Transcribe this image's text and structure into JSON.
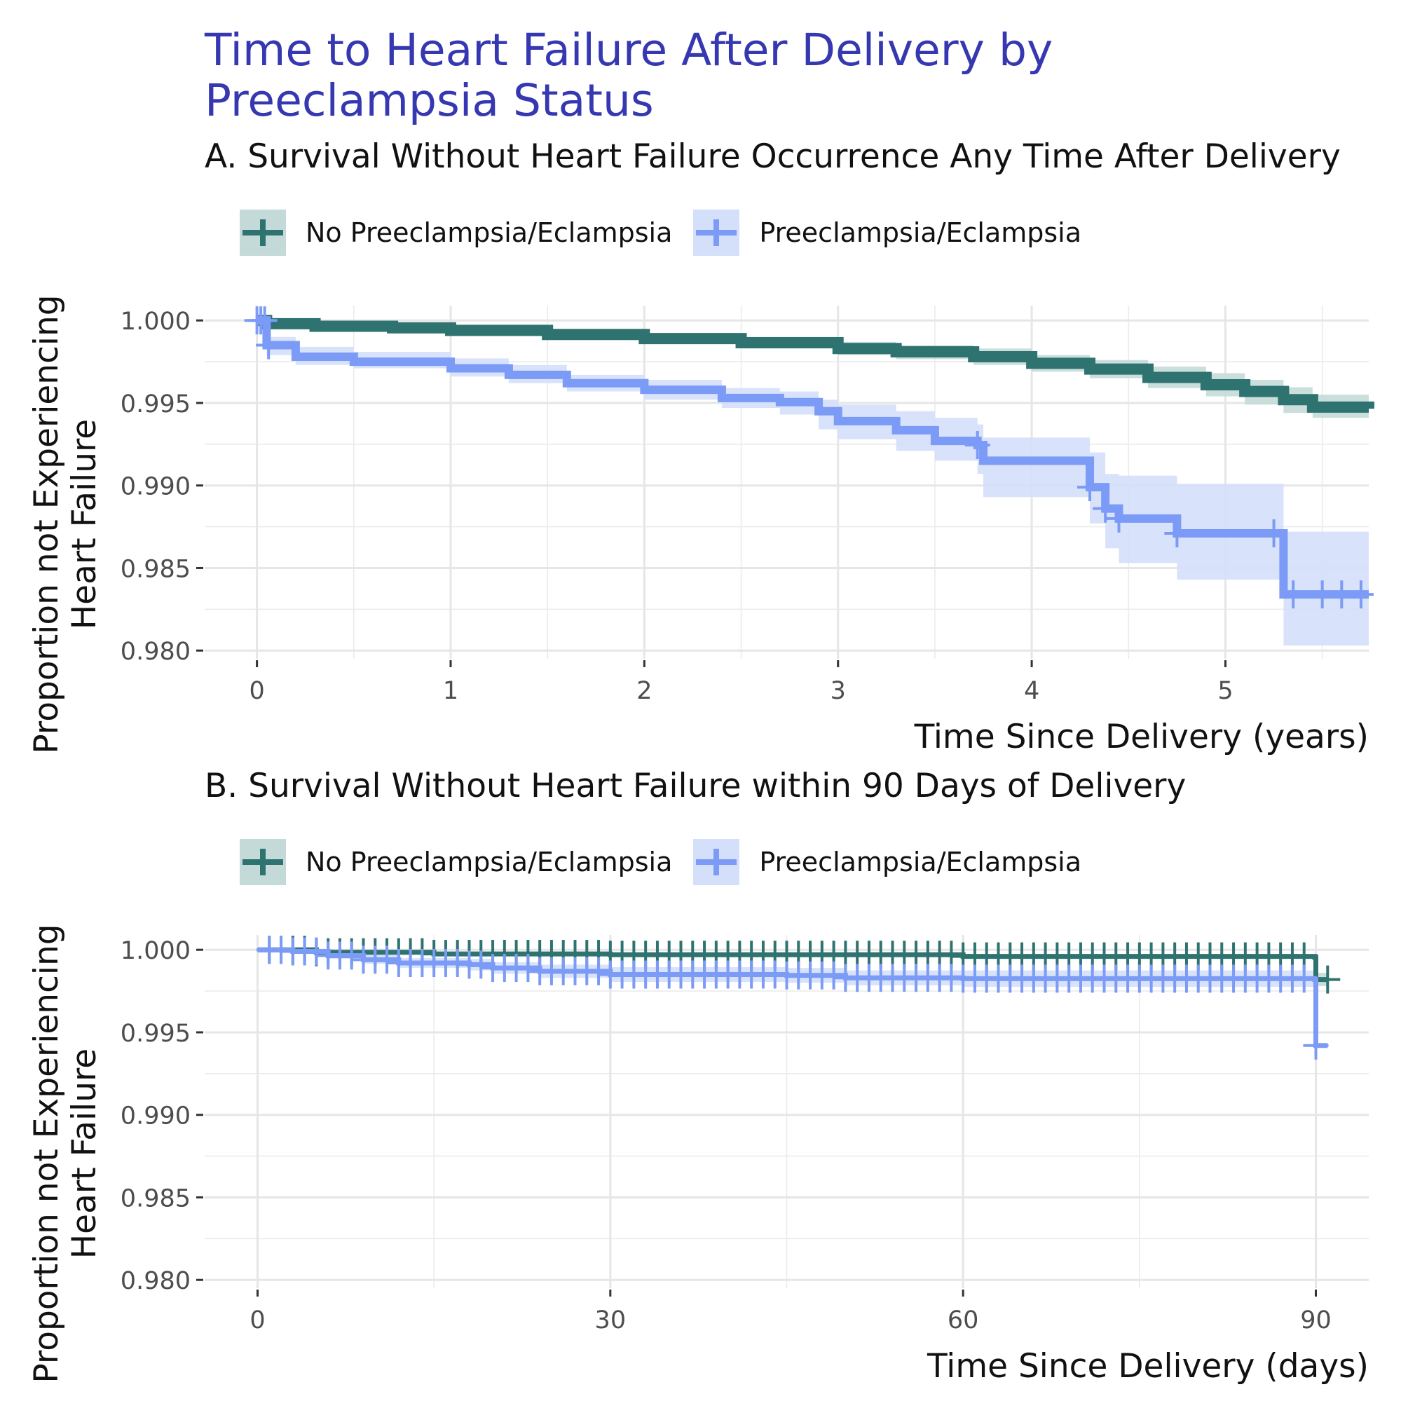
{
  "title": "Time to Heart Failure After Delivery by\nPreeclampsia Status",
  "colors": {
    "title": "#3538b0",
    "no_preeclampsia": "#2e7370",
    "no_preeclampsia_band": "#c4dad8",
    "preeclampsia": "#7b9bf6",
    "preeclampsia_band": "#d4dffa"
  },
  "chart_data": [
    {
      "type": "line",
      "subtype": "kaplan-meier survival with confidence bands and censor marks",
      "title": "A. Survival Without Heart Failure Occurrence Any Time After Delivery",
      "xlabel": "Time Since Delivery (years)",
      "ylabel": "Proportion not Experiencing\nHeart Failure",
      "xlim": [
        -0.27,
        5.74
      ],
      "ylim": [
        0.9795,
        1.0009
      ],
      "x_ticks": [
        0,
        1,
        2,
        3,
        4,
        5
      ],
      "y_ticks": [
        0.98,
        0.985,
        0.99,
        0.995,
        1.0
      ],
      "y_tick_labels": [
        "0.980",
        "0.985",
        "0.990",
        "0.995",
        "1.000"
      ],
      "legend_position": "top-left",
      "grid": true,
      "series": [
        {
          "name": "No Preeclampsia/Eclampsia",
          "color_key": "no_preeclampsia",
          "x": [
            0,
            0.05,
            0.3,
            0.7,
            1.0,
            1.5,
            2.0,
            2.5,
            3.0,
            3.3,
            3.7,
            4.0,
            4.3,
            4.6,
            4.9,
            5.1,
            5.3,
            5.45,
            5.74
          ],
          "y": [
            1.0,
            0.9998,
            0.99965,
            0.99955,
            0.9994,
            0.99915,
            0.9989,
            0.99865,
            0.9983,
            0.9981,
            0.9978,
            0.9974,
            0.99705,
            0.99655,
            0.9961,
            0.9957,
            0.9952,
            0.99475,
            0.99465
          ],
          "ci_lower": [
            1.0,
            0.99965,
            0.99945,
            0.9993,
            0.99915,
            0.9989,
            0.9986,
            0.9983,
            0.9979,
            0.99765,
            0.9973,
            0.9969,
            0.9965,
            0.9959,
            0.9954,
            0.9949,
            0.9944,
            0.9941,
            0.9941
          ],
          "ci_upper": [
            1.0,
            0.9999,
            0.99985,
            0.99975,
            0.9996,
            0.9994,
            0.9992,
            0.999,
            0.9987,
            0.9985,
            0.9983,
            0.9979,
            0.9976,
            0.9972,
            0.9968,
            0.9964,
            0.99595,
            0.9955,
            0.9952
          ]
        },
        {
          "name": "Preeclampsia/Eclampsia",
          "color_key": "preeclampsia",
          "x": [
            0,
            0.05,
            0.2,
            0.5,
            1.0,
            1.3,
            1.6,
            2.0,
            2.4,
            2.7,
            2.9,
            3.0,
            3.3,
            3.5,
            3.72,
            3.75,
            4.3,
            4.38,
            4.45,
            4.75,
            5.3,
            5.74
          ],
          "y": [
            1.0,
            0.9985,
            0.9978,
            0.9975,
            0.9971,
            0.9967,
            0.9962,
            0.9958,
            0.9953,
            0.99505,
            0.9945,
            0.9939,
            0.99335,
            0.9927,
            0.99245,
            0.9915,
            0.9899,
            0.9886,
            0.988,
            0.9871,
            0.9834,
            0.9834
          ],
          "ci_lower": [
            1.0,
            0.9979,
            0.9973,
            0.9971,
            0.9966,
            0.9962,
            0.9957,
            0.9952,
            0.9947,
            0.9943,
            0.9934,
            0.9928,
            0.9921,
            0.9915,
            0.9907,
            0.9893,
            0.9877,
            0.9862,
            0.9853,
            0.9843,
            0.9803,
            0.9803
          ],
          "ci_upper": [
            1.0,
            0.999,
            0.9984,
            0.9981,
            0.9977,
            0.9973,
            0.9967,
            0.9964,
            0.9959,
            0.9957,
            0.9952,
            0.9949,
            0.9945,
            0.9941,
            0.9937,
            0.9929,
            0.992,
            0.9907,
            0.9906,
            0.9901,
            0.9872,
            0.9872
          ],
          "censor_x": [
            0.0,
            0.02,
            0.04,
            0.06,
            3.72,
            4.3,
            4.38,
            4.45,
            4.75,
            5.25,
            5.35,
            5.5,
            5.6,
            5.7
          ]
        }
      ]
    },
    {
      "type": "line",
      "subtype": "kaplan-meier survival with confidence bands and censor marks",
      "title": "B. Survival Without Heart Failure within 90 Days of Delivery",
      "xlabel": "Time Since Delivery (days)",
      "ylabel": "Proportion not Experiencing\nHeart Failure",
      "xlim": [
        -4.5,
        94.5
      ],
      "ylim": [
        0.9795,
        1.0009
      ],
      "x_ticks": [
        0,
        30,
        60,
        90
      ],
      "y_ticks": [
        0.98,
        0.985,
        0.99,
        0.995,
        1.0
      ],
      "y_tick_labels": [
        "0.980",
        "0.985",
        "0.990",
        "0.995",
        "1.000"
      ],
      "legend_position": "top-left",
      "grid": true,
      "series": [
        {
          "name": "No Preeclampsia/Eclampsia",
          "color_key": "no_preeclampsia",
          "x": [
            0,
            5,
            15,
            30,
            60,
            89.9,
            90,
            91
          ],
          "y": [
            1.0,
            0.99985,
            0.99975,
            0.9997,
            0.9996,
            0.99955,
            0.9982,
            0.9982
          ],
          "ci_lower": [
            1.0,
            0.9998,
            0.9997,
            0.99963,
            0.99953,
            0.99945,
            0.9978,
            0.9978
          ],
          "ci_upper": [
            1.0,
            0.9999,
            0.9998,
            0.99977,
            0.99967,
            0.99962,
            0.9986,
            0.9986
          ],
          "censor_x": [
            1,
            2,
            3,
            4,
            5,
            6,
            7,
            8,
            9,
            10,
            11,
            12,
            13,
            14,
            15,
            16,
            17,
            18,
            19,
            20,
            21,
            22,
            23,
            24,
            25,
            26,
            27,
            28,
            29,
            30,
            31,
            32,
            33,
            34,
            35,
            36,
            37,
            38,
            39,
            40,
            41,
            42,
            43,
            44,
            45,
            46,
            47,
            48,
            49,
            50,
            51,
            52,
            53,
            54,
            55,
            56,
            57,
            58,
            59,
            60,
            61,
            62,
            63,
            64,
            65,
            66,
            67,
            68,
            69,
            70,
            71,
            72,
            73,
            74,
            75,
            76,
            77,
            78,
            79,
            80,
            81,
            82,
            83,
            84,
            85,
            86,
            87,
            88,
            89,
            91
          ]
        },
        {
          "name": "Preeclampsia/Eclampsia",
          "color_key": "preeclampsia",
          "x": [
            0,
            3,
            6,
            9,
            12,
            18,
            20,
            24,
            30,
            45,
            50,
            60,
            89.9,
            90,
            91
          ],
          "y": [
            1.0,
            0.9999,
            0.99965,
            0.9994,
            0.9992,
            0.9991,
            0.9989,
            0.9987,
            0.9985,
            0.99845,
            0.9983,
            0.99825,
            0.9982,
            0.9942,
            0.9942
          ],
          "ci_lower": [
            1.0,
            0.99975,
            0.99945,
            0.99915,
            0.9989,
            0.99875,
            0.99855,
            0.9983,
            0.99805,
            0.998,
            0.99785,
            0.99775,
            0.9977,
            0.9942,
            0.9942
          ],
          "ci_upper": [
            1.0,
            1.0,
            0.99985,
            0.9997,
            0.9995,
            0.99945,
            0.99925,
            0.9991,
            0.99895,
            0.9989,
            0.99875,
            0.99875,
            0.9987,
            0.9942,
            0.9942
          ],
          "censor_x": [
            1,
            2,
            3,
            4,
            5,
            6,
            7,
            8,
            9,
            10,
            11,
            12,
            13,
            14,
            15,
            16,
            17,
            18,
            19,
            20,
            21,
            22,
            23,
            24,
            25,
            26,
            27,
            28,
            29,
            30,
            31,
            32,
            33,
            34,
            35,
            36,
            37,
            38,
            39,
            40,
            41,
            42,
            43,
            44,
            45,
            46,
            47,
            48,
            49,
            50,
            51,
            52,
            53,
            54,
            55,
            56,
            57,
            58,
            59,
            60,
            61,
            62,
            63,
            64,
            65,
            66,
            67,
            68,
            69,
            70,
            71,
            72,
            73,
            74,
            75,
            76,
            77,
            78,
            79,
            80,
            81,
            82,
            83,
            84,
            85,
            86,
            87,
            88,
            89,
            90
          ]
        }
      ]
    }
  ]
}
